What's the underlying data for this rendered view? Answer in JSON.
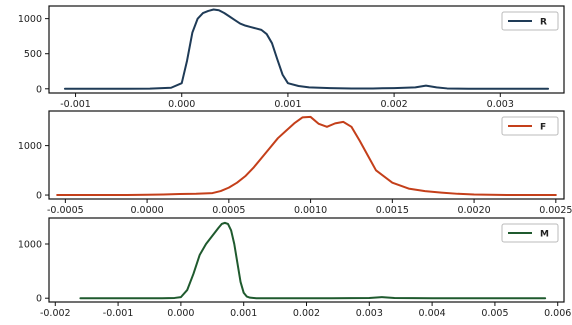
{
  "chart_data": [
    {
      "type": "line",
      "xlim": [
        -0.00125,
        0.0036
      ],
      "ylim": [
        -60,
        1180
      ],
      "x_ticks": [
        -0.001,
        0.0,
        0.001,
        0.002,
        0.003
      ],
      "x_tick_labels": [
        "-0.001",
        "0.000",
        "0.001",
        "0.002",
        "0.003"
      ],
      "y_ticks": [
        0,
        500,
        1000
      ],
      "y_tick_labels": [
        "0",
        "500",
        "1000"
      ],
      "legend_position": "top-right",
      "series": [
        {
          "name": "R",
          "color": "#1f3b57",
          "x": [
            -0.0011,
            -0.0006,
            -0.0003,
            -0.0001,
            0.0,
            5e-05,
            0.0001,
            0.00015,
            0.0002,
            0.00025,
            0.0003,
            0.00035,
            0.0004,
            0.00045,
            0.0005,
            0.00055,
            0.0006,
            0.00065,
            0.0007,
            0.00075,
            0.0008,
            0.00085,
            0.0009,
            0.00095,
            0.001,
            0.0011,
            0.0012,
            0.0014,
            0.0016,
            0.0018,
            0.002,
            0.0021,
            0.0022,
            0.0023,
            0.0024,
            0.0025,
            0.0027,
            0.003,
            0.0033,
            0.00345
          ],
          "y": [
            0,
            0,
            2,
            15,
            80,
            400,
            800,
            1000,
            1080,
            1110,
            1130,
            1120,
            1080,
            1030,
            980,
            930,
            900,
            880,
            860,
            840,
            780,
            650,
            420,
            200,
            80,
            40,
            20,
            10,
            5,
            5,
            10,
            15,
            20,
            45,
            20,
            5,
            0,
            0,
            0,
            0
          ]
        }
      ]
    },
    {
      "type": "line",
      "xlim": [
        -0.0006,
        0.00255
      ],
      "ylim": [
        -80,
        1700
      ],
      "x_ticks": [
        -0.0005,
        0.0,
        0.0005,
        0.001,
        0.0015,
        0.002,
        0.0025
      ],
      "x_tick_labels": [
        "-0.0005",
        "0.0000",
        "0.0005",
        "0.0010",
        "0.0015",
        "0.0020",
        "0.0025"
      ],
      "y_ticks": [
        0,
        1000
      ],
      "y_tick_labels": [
        "0",
        "1000"
      ],
      "legend_position": "top-right",
      "series": [
        {
          "name": "F",
          "color": "#c43f1a",
          "x": [
            -0.00055,
            -0.0002,
            0.0,
            0.0001,
            0.0002,
            0.0003,
            0.0004,
            0.00045,
            0.0005,
            0.00055,
            0.0006,
            0.00065,
            0.0007,
            0.00075,
            0.0008,
            0.00085,
            0.0009,
            0.00095,
            0.001,
            0.00105,
            0.0011,
            0.00115,
            0.0012,
            0.00125,
            0.0013,
            0.00135,
            0.0014,
            0.0015,
            0.0016,
            0.0017,
            0.0018,
            0.0019,
            0.002,
            0.0022,
            0.0025
          ],
          "y": [
            0,
            0,
            5,
            10,
            20,
            25,
            40,
            80,
            150,
            250,
            380,
            550,
            750,
            950,
            1150,
            1300,
            1450,
            1570,
            1580,
            1440,
            1380,
            1450,
            1480,
            1380,
            1100,
            800,
            500,
            250,
            130,
            80,
            50,
            25,
            10,
            0,
            0
          ]
        }
      ]
    },
    {
      "type": "line",
      "xlim": [
        -0.0021,
        0.0061
      ],
      "ylim": [
        -70,
        1480
      ],
      "x_ticks": [
        -0.002,
        -0.001,
        0.0,
        0.001,
        0.002,
        0.003,
        0.004,
        0.005,
        0.006
      ],
      "x_tick_labels": [
        "-0.002",
        "-0.001",
        "0.000",
        "0.001",
        "0.002",
        "0.003",
        "0.004",
        "0.005",
        "0.006"
      ],
      "y_ticks": [
        0,
        1000
      ],
      "y_tick_labels": [
        "0",
        "1000"
      ],
      "legend_position": "top-right",
      "series": [
        {
          "name": "M",
          "color": "#1f5a2e",
          "x": [
            -0.0016,
            -0.0008,
            -0.0003,
            -0.0001,
            0.0,
            0.0001,
            0.0002,
            0.0003,
            0.0004,
            0.0005,
            0.0006,
            0.00065,
            0.0007,
            0.00075,
            0.0008,
            0.00085,
            0.0009,
            0.00095,
            0.001,
            0.00105,
            0.0011,
            0.0012,
            0.0014,
            0.0018,
            0.0024,
            0.003,
            0.0032,
            0.0034,
            0.004,
            0.005,
            0.0058
          ],
          "y": [
            0,
            0,
            0,
            5,
            20,
            150,
            450,
            800,
            1000,
            1150,
            1300,
            1370,
            1390,
            1370,
            1250,
            1000,
            650,
            300,
            100,
            30,
            10,
            0,
            0,
            0,
            0,
            5,
            20,
            5,
            0,
            0,
            0
          ]
        }
      ]
    }
  ]
}
